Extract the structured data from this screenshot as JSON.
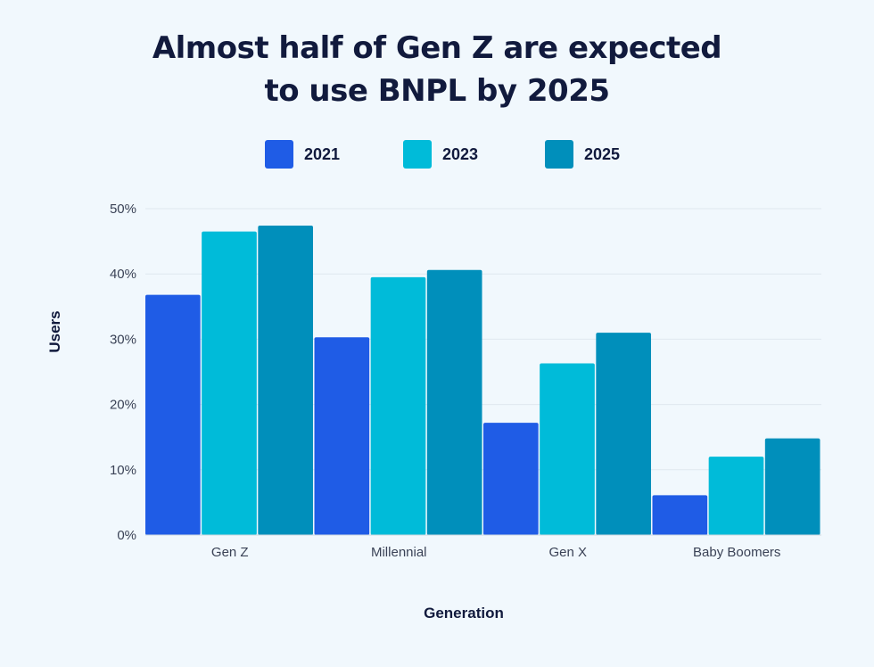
{
  "title_lines": [
    "Almost half of Gen Z are expected",
    "to use BNPL by 2025"
  ],
  "chart_data": {
    "type": "bar",
    "title": "Almost half of Gen Z are expected to use BNPL by 2025",
    "xlabel": "Generation",
    "ylabel": "Users",
    "categories": [
      "Gen Z",
      "Millennial",
      "Gen X",
      "Baby Boomers"
    ],
    "series": [
      {
        "name": "2021",
        "color": "#1f5ce6",
        "values": [
          36.8,
          30.3,
          17.2,
          6.1
        ]
      },
      {
        "name": "2023",
        "color": "#00bbd9",
        "values": [
          46.5,
          39.5,
          26.3,
          12.0
        ]
      },
      {
        "name": "2025",
        "color": "#008fbb",
        "values": [
          47.4,
          40.6,
          31.0,
          14.8
        ]
      }
    ],
    "ylim": [
      0,
      50
    ],
    "yticks": [
      "0%",
      "10%",
      "20%",
      "30%",
      "40%",
      "50%"
    ],
    "grid": true,
    "legend_position": "top"
  }
}
